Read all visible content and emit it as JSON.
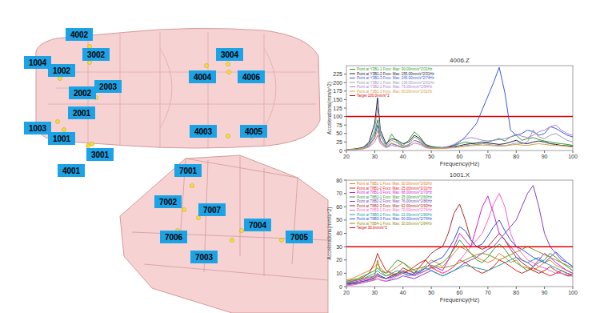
{
  "diagram": {
    "labels": [
      "4002",
      "1004",
      "3002",
      "1002",
      "2003",
      "2002",
      "2001",
      "1003",
      "1001",
      "3001",
      "4001",
      "3004",
      "4004",
      "4006",
      "4003",
      "4005",
      "7001",
      "7002",
      "7007",
      "7006",
      "7004",
      "7003",
      "7005"
    ]
  },
  "chart_data": [
    {
      "type": "line",
      "title": "4006.Z",
      "x_label": "Frequency(Hz)",
      "y_label": "Accelerations(mm/s^2)",
      "xlim": [
        20,
        100
      ],
      "xticks": [
        20,
        30,
        40,
        50,
        60,
        70,
        80,
        90,
        100
      ],
      "ylim": [
        0,
        250
      ],
      "yticks": [
        0,
        25,
        50,
        75,
        100,
        125,
        150,
        175,
        200,
        225
      ],
      "grid": false,
      "legend": "upper-left",
      "target": {
        "name": "Target 100.0mm/s^2",
        "value": 100,
        "color": "#e00000"
      },
      "x": [
        20,
        22,
        24,
        26,
        28,
        30,
        31,
        32,
        34,
        36,
        38,
        40,
        42,
        44,
        46,
        48,
        50,
        52,
        54,
        56,
        58,
        60,
        62,
        64,
        66,
        68,
        70,
        72,
        74,
        76,
        78,
        80,
        82,
        84,
        86,
        88,
        90,
        92,
        94,
        96,
        98,
        100
      ],
      "series": [
        {
          "name": "Point at Y3B1-1 Fxxx: Max: 90.00mm/s^2/31Hz",
          "color": "#2ca02c",
          "values": [
            3,
            4,
            6,
            10,
            20,
            50,
            90,
            45,
            15,
            48,
            25,
            15,
            30,
            55,
            40,
            18,
            12,
            10,
            9,
            10,
            15,
            20,
            25,
            22,
            18,
            20,
            25,
            30,
            35,
            28,
            40,
            45,
            30,
            35,
            38,
            32,
            28,
            25,
            22,
            20,
            18,
            15
          ]
        },
        {
          "name": "Point at Y3B1-2 Fxxx: Max: 155.00mm/s^2/31Hz",
          "color": "#222244",
          "values": [
            2,
            3,
            5,
            9,
            25,
            80,
            155,
            60,
            20,
            35,
            30,
            20,
            25,
            45,
            35,
            15,
            10,
            8,
            7,
            9,
            12,
            14,
            18,
            20,
            22,
            25,
            22,
            20,
            18,
            20,
            25,
            30,
            22,
            20,
            25,
            28,
            25,
            20,
            18,
            15,
            14,
            12
          ]
        },
        {
          "name": "Point at Y3B1-3 Fxxx: Max: 245.00mm/s^2/74Hz",
          "color": "#3a5bd9",
          "values": [
            1,
            2,
            3,
            6,
            15,
            40,
            75,
            30,
            10,
            20,
            15,
            10,
            15,
            30,
            25,
            10,
            8,
            7,
            8,
            12,
            15,
            25,
            40,
            60,
            80,
            120,
            160,
            200,
            245,
            170,
            60,
            45,
            50,
            60,
            55,
            45,
            50,
            70,
            65,
            55,
            45,
            40
          ]
        },
        {
          "name": "Point at Y3B2-1 Fxxx: Max: 130.00mm/s^2/31Hz",
          "color": "#9a9ab0",
          "values": [
            2,
            3,
            4,
            8,
            18,
            60,
            130,
            50,
            12,
            30,
            22,
            12,
            18,
            40,
            30,
            12,
            9,
            8,
            7,
            8,
            10,
            12,
            15,
            16,
            18,
            20,
            18,
            16,
            15,
            14,
            18,
            22,
            20,
            25,
            60,
            40,
            35,
            45,
            50,
            40,
            30,
            25
          ]
        },
        {
          "name": "Point at Y3B2-2 Fxxx: Max: 75.00mm/s^2/94Hz",
          "color": "#b080e0",
          "values": [
            1,
            2,
            3,
            5,
            10,
            25,
            45,
            20,
            8,
            15,
            12,
            8,
            12,
            22,
            18,
            8,
            6,
            6,
            8,
            12,
            18,
            28,
            35,
            38,
            35,
            30,
            28,
            30,
            32,
            35,
            40,
            48,
            42,
            38,
            45,
            55,
            60,
            70,
            75,
            60,
            50,
            45
          ]
        },
        {
          "name": "Point at Y3B2-3 Fxxx: Max: 60.00mm/s^2/31Hz",
          "color": "#d8a040",
          "values": [
            2,
            3,
            4,
            6,
            12,
            35,
            60,
            25,
            10,
            22,
            15,
            10,
            14,
            30,
            22,
            10,
            7,
            6,
            6,
            7,
            8,
            10,
            12,
            14,
            15,
            16,
            15,
            14,
            13,
            14,
            16,
            18,
            16,
            15,
            18,
            20,
            18,
            16,
            15,
            14,
            12,
            10
          ]
        }
      ]
    },
    {
      "type": "line",
      "title": "1001.X",
      "x_label": "Frequency(Hz)",
      "y_label": "Accelerations(mm/s^2)",
      "xlim": [
        20,
        100
      ],
      "xticks": [
        20,
        30,
        40,
        50,
        60,
        70,
        80,
        90,
        100
      ],
      "ylim": [
        0,
        80
      ],
      "yticks": [
        0,
        10,
        20,
        30,
        40,
        50,
        60,
        70,
        80
      ],
      "grid": false,
      "legend": "upper-left",
      "target": {
        "name": "Target 30.0mm/s^2",
        "value": 30,
        "color": "#e00000"
      },
      "x": [
        20,
        22,
        24,
        26,
        28,
        30,
        31,
        32,
        34,
        36,
        38,
        40,
        42,
        44,
        46,
        48,
        50,
        52,
        54,
        56,
        58,
        60,
        62,
        64,
        66,
        68,
        70,
        72,
        74,
        76,
        78,
        80,
        82,
        84,
        86,
        88,
        90,
        92,
        94,
        96,
        98,
        100
      ],
      "series": [
        {
          "name": "Point at T8B1-1 Fxxx: Max: 30.00mm/s^2/60Hz",
          "color": "#e08030",
          "values": [
            5,
            6,
            8,
            10,
            12,
            15,
            17,
            14,
            10,
            12,
            15,
            18,
            14,
            10,
            12,
            16,
            20,
            18,
            15,
            20,
            25,
            30,
            28,
            25,
            22,
            20,
            18,
            20,
            25,
            22,
            18,
            20,
            15,
            14,
            12,
            15,
            18,
            20,
            16,
            14,
            12,
            10
          ]
        },
        {
          "name": "Point at T8B1-2 Fxxx: Max: 25.00mm/s^2/31Hz",
          "color": "#e02020",
          "values": [
            3,
            4,
            5,
            7,
            10,
            18,
            25,
            20,
            12,
            10,
            8,
            10,
            12,
            15,
            18,
            20,
            15,
            12,
            10,
            12,
            15,
            20,
            18,
            15,
            12,
            10,
            12,
            15,
            20,
            18,
            15,
            12,
            10,
            12,
            14,
            12,
            10,
            8,
            10,
            12,
            10,
            8
          ]
        },
        {
          "name": "Point at T8B1-3 Fxxx: Max: 68.00mm/s^2/70Hz",
          "color": "#d020d0",
          "values": [
            2,
            3,
            4,
            5,
            6,
            8,
            10,
            8,
            6,
            8,
            10,
            12,
            10,
            8,
            10,
            12,
            15,
            14,
            12,
            20,
            30,
            40,
            35,
            30,
            45,
            60,
            68,
            55,
            40,
            35,
            30,
            25,
            20,
            18,
            15,
            20,
            25,
            22,
            18,
            15,
            12,
            10
          ]
        },
        {
          "name": "Point at T8B2-1 Fxxx: Max: 35.00mm/s^2/60Hz",
          "color": "#30a030",
          "values": [
            4,
            5,
            6,
            8,
            10,
            12,
            14,
            12,
            10,
            15,
            20,
            18,
            15,
            12,
            10,
            12,
            14,
            16,
            18,
            22,
            28,
            35,
            30,
            25,
            20,
            18,
            22,
            28,
            32,
            28,
            22,
            18,
            15,
            12,
            15,
            18,
            20,
            25,
            22,
            18,
            15,
            12
          ]
        },
        {
          "name": "Point at T8B2-2 Fxxx: Max: 76.00mm/s^2/86Hz",
          "color": "#8040c0",
          "values": [
            1,
            2,
            2,
            3,
            4,
            5,
            6,
            5,
            4,
            5,
            6,
            8,
            7,
            6,
            8,
            10,
            12,
            10,
            8,
            10,
            12,
            15,
            18,
            20,
            22,
            25,
            28,
            30,
            35,
            40,
            45,
            50,
            60,
            70,
            76,
            60,
            40,
            30,
            25,
            20,
            18,
            15
          ]
        },
        {
          "name": "Point at T8B2-3 Fxxx: Max: 62.00mm/s^2/60Hz",
          "color": "#a03030",
          "values": [
            2,
            3,
            3,
            4,
            5,
            6,
            8,
            7,
            6,
            8,
            10,
            14,
            12,
            10,
            15,
            20,
            25,
            28,
            30,
            40,
            55,
            62,
            50,
            35,
            30,
            28,
            30,
            35,
            40,
            35,
            28,
            22,
            18,
            15,
            12,
            10,
            12,
            15,
            12,
            10,
            8,
            8
          ]
        },
        {
          "name": "Point at T8B3-1 Fxxx: Max: 70.00mm/s^2/74Hz",
          "color": "#ff60c0",
          "values": [
            1,
            1,
            2,
            3,
            4,
            5,
            6,
            5,
            4,
            6,
            8,
            10,
            9,
            8,
            10,
            12,
            14,
            12,
            10,
            12,
            15,
            20,
            25,
            30,
            35,
            40,
            50,
            62,
            70,
            60,
            40,
            30,
            25,
            20,
            18,
            15,
            14,
            12,
            10,
            10,
            9,
            8
          ]
        },
        {
          "name": "Point at T8B3-2 Fxxx: Max: 22.00mm/s^2/80Hz",
          "color": "#20a0a0",
          "values": [
            3,
            4,
            5,
            6,
            8,
            10,
            12,
            10,
            8,
            10,
            12,
            10,
            8,
            10,
            12,
            14,
            12,
            10,
            8,
            10,
            12,
            14,
            16,
            15,
            14,
            13,
            12,
            14,
            16,
            18,
            20,
            22,
            20,
            18,
            20,
            22,
            18,
            16,
            14,
            12,
            10,
            9
          ]
        },
        {
          "name": "Point at T8B3-3 Fxxx: Max: 50.00mm/s^2/74Hz",
          "color": "#3050e0",
          "values": [
            2,
            2,
            3,
            4,
            5,
            7,
            9,
            8,
            6,
            7,
            9,
            11,
            10,
            9,
            11,
            14,
            18,
            20,
            22,
            28,
            35,
            45,
            42,
            35,
            30,
            32,
            38,
            45,
            50,
            42,
            35,
            30,
            28,
            25,
            22,
            20,
            18,
            22,
            26,
            22,
            18,
            15
          ]
        },
        {
          "name": "Point at T8B4-1 Fxxx: Max: 30.00mm/s^2/84Hz",
          "color": "#909020",
          "values": [
            4,
            5,
            5,
            6,
            7,
            8,
            20,
            12,
            8,
            9,
            10,
            11,
            12,
            13,
            14,
            15,
            16,
            15,
            14,
            15,
            16,
            18,
            20,
            22,
            24,
            25,
            24,
            22,
            20,
            22,
            24,
            26,
            28,
            30,
            28,
            26,
            24,
            22,
            20,
            18,
            16,
            14
          ]
        }
      ]
    }
  ]
}
